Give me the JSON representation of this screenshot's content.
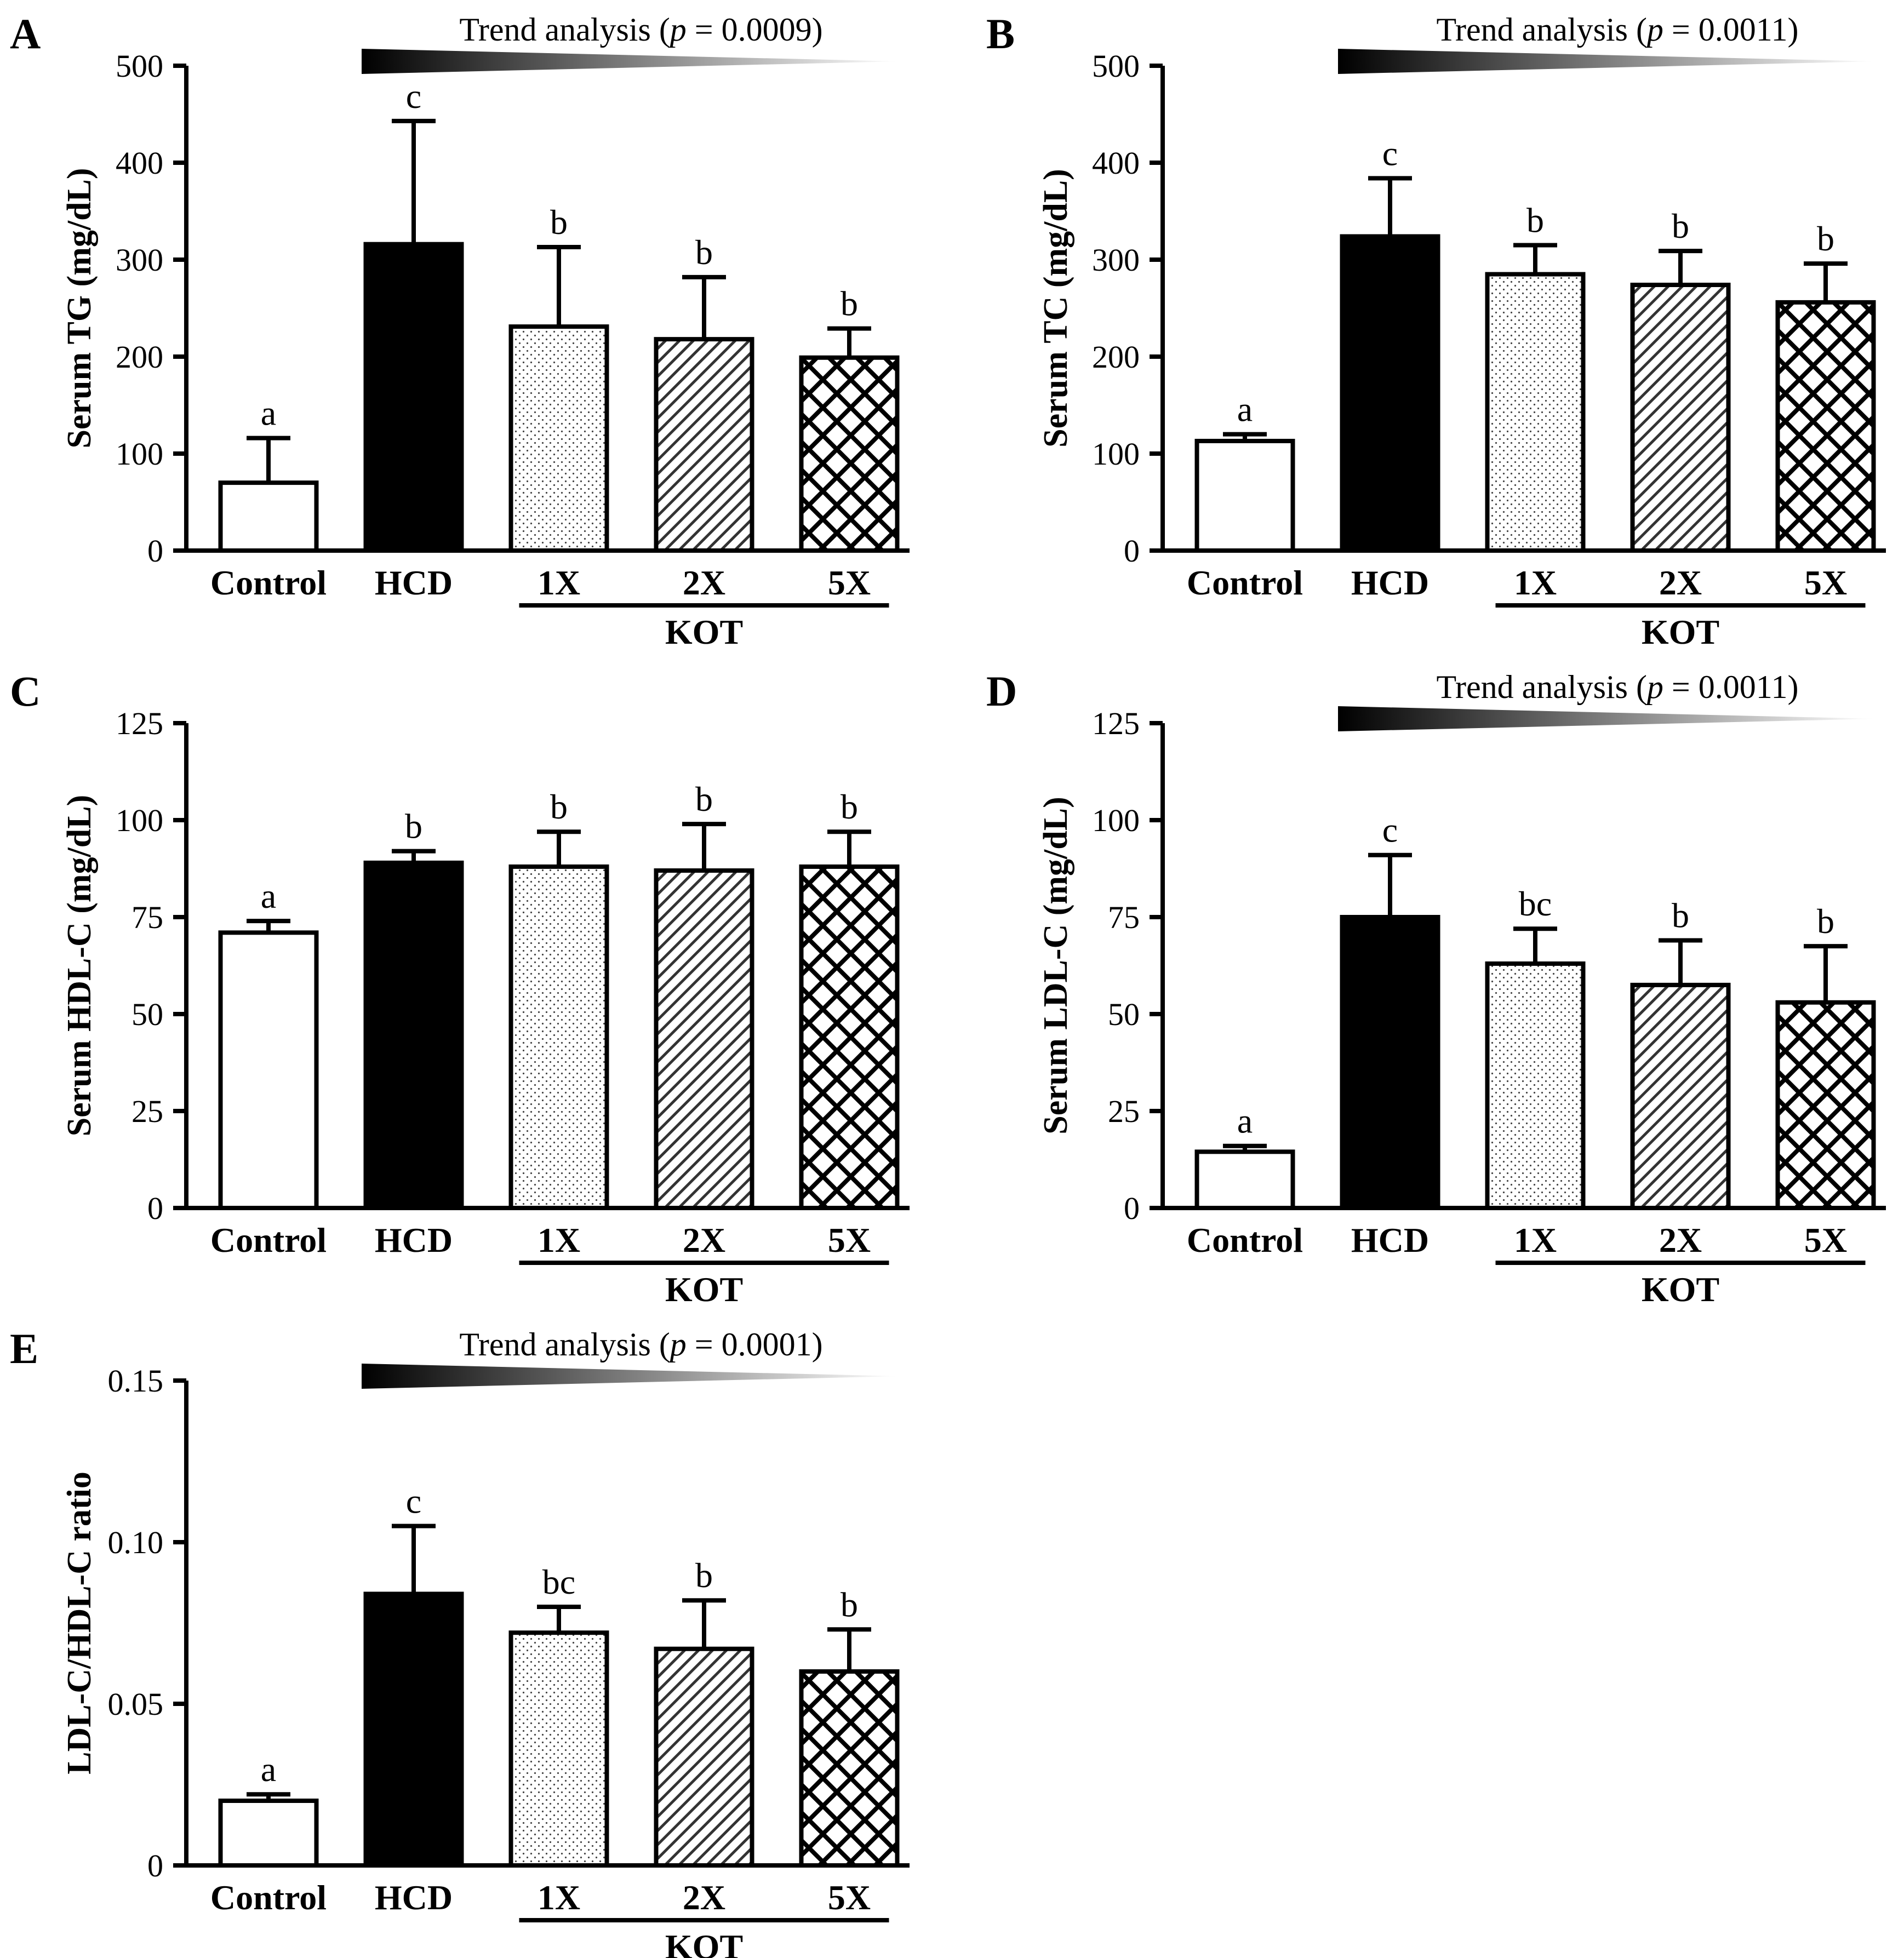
{
  "figure": {
    "categories": [
      "Control",
      "HCD",
      "1X",
      "2X",
      "5X"
    ],
    "group_label": "KOT",
    "group_members": [
      "1X",
      "2X",
      "5X"
    ],
    "fills": [
      "white",
      "black",
      "dots",
      "diagonal",
      "crosshatch"
    ]
  },
  "chart_data": [
    {
      "panel": "A",
      "type": "bar",
      "title": "",
      "ylabel": "Serum TG (mg/dL)",
      "categories": [
        "Control",
        "HCD",
        "1X",
        "2X",
        "5X"
      ],
      "values": [
        70,
        316,
        231,
        218,
        199
      ],
      "errors": [
        46,
        127,
        82,
        64,
        30
      ],
      "sig_letters": [
        "a",
        "c",
        "b",
        "b",
        "b"
      ],
      "ylim": [
        0,
        500
      ],
      "yticks": [
        0,
        100,
        200,
        300,
        400,
        500
      ],
      "ytick_labels": [
        "0",
        "100",
        "200",
        "300",
        "400",
        "500"
      ],
      "trend": {
        "prefix": "Trend analysis (",
        "p": "p",
        "suffix": " = 0.0009)"
      }
    },
    {
      "panel": "B",
      "type": "bar",
      "title": "",
      "ylabel": "Serum TC (mg/dL)",
      "categories": [
        "Control",
        "HCD",
        "1X",
        "2X",
        "5X"
      ],
      "values": [
        113,
        324,
        285,
        274,
        256
      ],
      "errors": [
        7,
        60,
        30,
        35,
        40
      ],
      "sig_letters": [
        "a",
        "c",
        "b",
        "b",
        "b"
      ],
      "ylim": [
        0,
        500
      ],
      "yticks": [
        0,
        100,
        200,
        300,
        400,
        500
      ],
      "ytick_labels": [
        "0",
        "100",
        "200",
        "300",
        "400",
        "500"
      ],
      "trend": {
        "prefix": "Trend analysis (",
        "p": "p",
        "suffix": " = 0.0011)"
      }
    },
    {
      "panel": "C",
      "type": "bar",
      "title": "",
      "ylabel": "Serum HDL-C (mg/dL)",
      "categories": [
        "Control",
        "HCD",
        "1X",
        "2X",
        "5X"
      ],
      "values": [
        71,
        89,
        88,
        87,
        88
      ],
      "errors": [
        3,
        3,
        9,
        12,
        9
      ],
      "sig_letters": [
        "a",
        "b",
        "b",
        "b",
        "b"
      ],
      "ylim": [
        0,
        125
      ],
      "yticks": [
        0,
        25,
        50,
        75,
        100,
        125
      ],
      "ytick_labels": [
        "0",
        "25",
        "50",
        "75",
        "100",
        "125"
      ],
      "trend": null
    },
    {
      "panel": "D",
      "type": "bar",
      "title": "",
      "ylabel": "Serum LDL-C (mg/dL)",
      "categories": [
        "Control",
        "HCD",
        "1X",
        "2X",
        "5X"
      ],
      "values": [
        14.5,
        75,
        63,
        57.5,
        53
      ],
      "errors": [
        1.5,
        16,
        9,
        11.5,
        14.5
      ],
      "sig_letters": [
        "a",
        "c",
        "bc",
        "b",
        "b"
      ],
      "ylim": [
        0,
        125
      ],
      "yticks": [
        0,
        25,
        50,
        75,
        100,
        125
      ],
      "ytick_labels": [
        "0",
        "25",
        "50",
        "75",
        "100",
        "125"
      ],
      "trend": {
        "prefix": "Trend analysis (",
        "p": "p",
        "suffix": " = 0.0011)"
      }
    },
    {
      "panel": "E",
      "type": "bar",
      "title": "",
      "ylabel": "LDL-C/HDL-C ratio",
      "categories": [
        "Control",
        "HCD",
        "1X",
        "2X",
        "5X"
      ],
      "values": [
        0.02,
        0.084,
        0.072,
        0.067,
        0.06
      ],
      "errors": [
        0.002,
        0.021,
        0.008,
        0.015,
        0.013
      ],
      "sig_letters": [
        "a",
        "c",
        "bc",
        "b",
        "b"
      ],
      "ylim": [
        0,
        0.15
      ],
      "yticks": [
        0,
        0.05,
        0.1,
        0.15
      ],
      "ytick_labels": [
        "0",
        "0.05",
        "0.10",
        "0.15"
      ],
      "trend": {
        "prefix": "Trend analysis (",
        "p": "p",
        "suffix": " = 0.0001)"
      }
    }
  ]
}
